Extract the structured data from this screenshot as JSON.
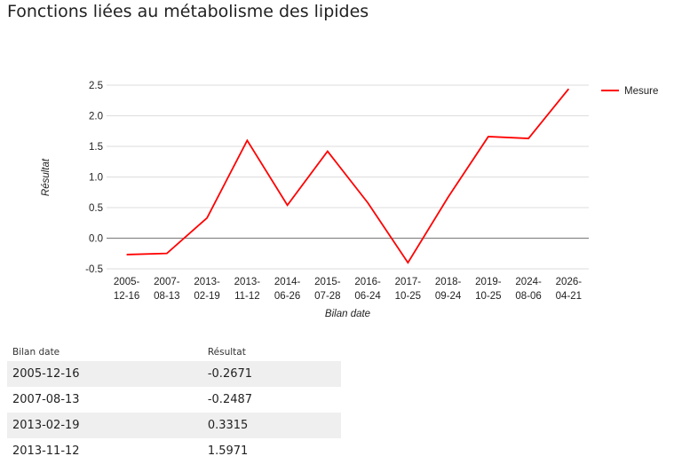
{
  "header": {
    "title": "Fonctions liées au métabolisme des lipides"
  },
  "chart_data": {
    "type": "line",
    "categories": [
      "2005-12-16",
      "2007-08-13",
      "2013-02-19",
      "2013-11-12",
      "2014-06-26",
      "2015-07-28",
      "2016-06-24",
      "2017-10-25",
      "2018-09-24",
      "2019-10-25",
      "2024-08-06",
      "2026-04-21"
    ],
    "series": [
      {
        "name": "Mesure",
        "color": "#ff0000",
        "values": [
          -0.2671,
          -0.2487,
          0.3315,
          1.5971,
          0.54,
          1.42,
          0.58,
          -0.4,
          0.67,
          1.66,
          1.63,
          2.44
        ]
      }
    ],
    "ylim": [
      -0.5,
      2.5
    ],
    "yticks": [
      -0.5,
      {
        "value": 0,
        "label": "0.0"
      },
      0.5,
      {
        "value": 1,
        "label": "1.0"
      },
      1.5,
      {
        "value": 2,
        "label": "2.0"
      },
      2.5
    ],
    "x_label": "Bilan date",
    "y_label": "Résultat",
    "grid": true,
    "legend": "right"
  },
  "table": {
    "headers": [
      "Bilan date",
      "Résultat"
    ],
    "rows": [
      [
        "2005-12-16",
        "-0.2671"
      ],
      [
        "2007-08-13",
        "-0.2487"
      ],
      [
        "2013-02-19",
        "0.3315"
      ],
      [
        "2013-11-12",
        "1.5971"
      ]
    ]
  }
}
